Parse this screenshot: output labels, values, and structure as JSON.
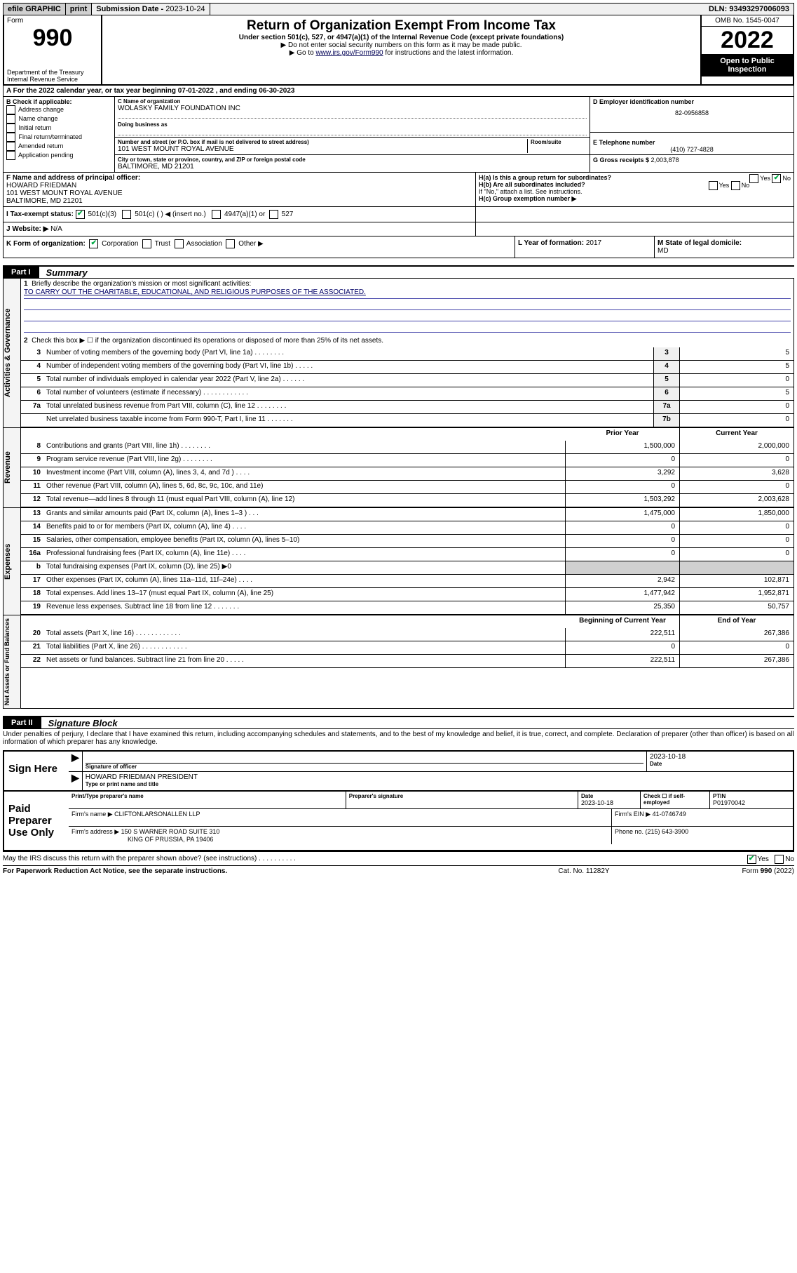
{
  "top_bar": {
    "efile": "efile GRAPHIC",
    "print": "print",
    "sub_label": "Submission Date - ",
    "sub_date": "2023-10-24",
    "dln_label": "DLN: ",
    "dln": "93493297006093"
  },
  "header": {
    "form_word": "Form",
    "form_num": "990",
    "dept": "Department of the Treasury\nInternal Revenue Service",
    "main_title": "Return of Organization Exempt From Income Tax",
    "sub1": "Under section 501(c), 527, or 4947(a)(1) of the Internal Revenue Code (except private foundations)",
    "sub2": "▶ Do not enter social security numbers on this form as it may be made public.",
    "sub3_pre": "▶ Go to ",
    "sub3_link": "www.irs.gov/Form990",
    "sub3_post": " for instructions and the latest information.",
    "omb": "OMB No. 1545-0047",
    "year": "2022",
    "open_pub": "Open to Public Inspection"
  },
  "row_a": {
    "text": "A For the 2022 calendar year, or tax year beginning 07-01-2022    , and ending 06-30-2023"
  },
  "col_b": {
    "hdr": "B Check if applicable:",
    "items": [
      "Address change",
      "Name change",
      "Initial return",
      "Final return/terminated",
      "Amended return",
      "Application pending"
    ]
  },
  "col_c": {
    "lbl": "C Name of organization",
    "name": "WOLASKY FAMILY FOUNDATION INC",
    "dba_lbl": "Doing business as",
    "dba": "",
    "addr_lbl": "Number and street (or P.O. box if mail is not delivered to street address)",
    "room_lbl": "Room/suite",
    "addr": "101 WEST MOUNT ROYAL AVENUE",
    "city_lbl": "City or town, state or province, country, and ZIP or foreign postal code",
    "city": "BALTIMORE, MD  21201"
  },
  "col_d": {
    "lbl": "D Employer identification number",
    "val": "82-0956858"
  },
  "col_e": {
    "lbl": "E Telephone number",
    "val": "(410) 727-4828"
  },
  "col_g": {
    "lbl": "G Gross receipts $ ",
    "val": "2,003,878"
  },
  "col_f": {
    "lbl": "F Name and address of principal officer:",
    "name": "HOWARD FRIEDMAN",
    "addr1": "101 WEST MOUNT ROYAL AVENUE",
    "addr2": "BALTIMORE, MD  21201"
  },
  "col_h": {
    "a": "H(a)  Is this a group return for subordinates?",
    "b": "H(b)  Are all subordinates included?",
    "note": "If \"No,\" attach a list. See instructions.",
    "c": "H(c)  Group exemption number ▶",
    "yes": "Yes",
    "no": "No"
  },
  "row_i": {
    "lbl": "I    Tax-exempt status:",
    "o1": "501(c)(3)",
    "o2": "501(c) (   ) ◀ (insert no.)",
    "o3": "4947(a)(1) or",
    "o4": "527"
  },
  "row_j": {
    "lbl": "J   Website: ▶ ",
    "val": "N/A"
  },
  "row_k": {
    "k1_lbl": "K Form of organization:",
    "k1_opts": [
      "Corporation",
      "Trust",
      "Association",
      "Other ▶"
    ],
    "k2_lbl": "L Year of formation: ",
    "k2_val": "2017",
    "k3_lbl": "M State of legal domicile:",
    "k3_val": "MD"
  },
  "part1": {
    "tab": "Part I",
    "title": "Summary",
    "q1_lbl": "Briefly describe the organization's mission or most significant activities:",
    "q1_val": "TO CARRY OUT THE CHARITABLE, EDUCATIONAL, AND RELIGIOUS PURPOSES OF THE ASSOCIATED.",
    "q2": "Check this box ▶ ☐  if the organization discontinued its operations or disposed of more than 25% of its net assets.",
    "sides": [
      "Activities & Governance",
      "Revenue",
      "Expenses",
      "Net Assets or Fund Balances"
    ],
    "hdr_prior": "Prior Year",
    "hdr_curr": "Current Year",
    "hdr_beg": "Beginning of Current Year",
    "hdr_end": "End of Year",
    "lines_top": [
      {
        "n": "3",
        "lbl": "Number of voting members of the governing body (Part VI, line 1a)   .    .    .    .    .    .    .    .",
        "box": "3",
        "val": "5"
      },
      {
        "n": "4",
        "lbl": "Number of independent voting members of the governing body (Part VI, line 1b)    .    .    .    .    .",
        "box": "4",
        "val": "5"
      },
      {
        "n": "5",
        "lbl": "Total number of individuals employed in calendar year 2022 (Part V, line 2a)   .    .    .    .    .    .",
        "box": "5",
        "val": "0"
      },
      {
        "n": "6",
        "lbl": "Total number of volunteers (estimate if necessary)   .    .    .    .    .    .    .    .    .    .    .    .",
        "box": "6",
        "val": "5"
      },
      {
        "n": "7a",
        "lbl": "Total unrelated business revenue from Part VIII, column (C), line 12   .    .    .    .    .    .    .    .",
        "box": "7a",
        "val": "0"
      },
      {
        "n": "",
        "lbl": "Net unrelated business taxable income from Form 990-T, Part I, line 11   .    .    .    .    .    .    .",
        "box": "7b",
        "val": "0"
      }
    ],
    "lines_rev": [
      {
        "n": "8",
        "lbl": "Contributions and grants (Part VIII, line 1h)    .    .    .    .    .    .    .    .",
        "p": "1,500,000",
        "c": "2,000,000"
      },
      {
        "n": "9",
        "lbl": "Program service revenue (Part VIII, line 2g)    .    .    .    .    .    .    .    .",
        "p": "0",
        "c": "0"
      },
      {
        "n": "10",
        "lbl": "Investment income (Part VIII, column (A), lines 3, 4, and 7d )    .    .    .    .",
        "p": "3,292",
        "c": "3,628"
      },
      {
        "n": "11",
        "lbl": "Other revenue (Part VIII, column (A), lines 5, 6d, 8c, 9c, 10c, and 11e)",
        "p": "0",
        "c": "0"
      },
      {
        "n": "12",
        "lbl": "Total revenue—add lines 8 through 11 (must equal Part VIII, column (A), line 12)",
        "p": "1,503,292",
        "c": "2,003,628"
      }
    ],
    "lines_exp": [
      {
        "n": "13",
        "lbl": "Grants and similar amounts paid (Part IX, column (A), lines 1–3 )    .    .    .",
        "p": "1,475,000",
        "c": "1,850,000"
      },
      {
        "n": "14",
        "lbl": "Benefits paid to or for members (Part IX, column (A), line 4)    .    .    .    .",
        "p": "0",
        "c": "0"
      },
      {
        "n": "15",
        "lbl": "Salaries, other compensation, employee benefits (Part IX, column (A), lines 5–10)",
        "p": "0",
        "c": "0"
      },
      {
        "n": "16a",
        "lbl": "Professional fundraising fees (Part IX, column (A), line 11e)    .    .    .    .",
        "p": "0",
        "c": "0"
      },
      {
        "n": "b",
        "lbl": "Total fundraising expenses (Part IX, column (D), line 25) ▶0",
        "p": "",
        "c": "",
        "shade": true
      },
      {
        "n": "17",
        "lbl": "Other expenses (Part IX, column (A), lines 11a–11d, 11f–24e)    .    .    .    .",
        "p": "2,942",
        "c": "102,871"
      },
      {
        "n": "18",
        "lbl": "Total expenses. Add lines 13–17 (must equal Part IX, column (A), line 25)",
        "p": "1,477,942",
        "c": "1,952,871"
      },
      {
        "n": "19",
        "lbl": "Revenue less expenses. Subtract line 18 from line 12   .    .    .    .    .    .    .",
        "p": "25,350",
        "c": "50,757"
      }
    ],
    "lines_net": [
      {
        "n": "20",
        "lbl": "Total assets (Part X, line 16)    .    .    .    .    .    .    .    .    .    .    .    .",
        "p": "222,511",
        "c": "267,386"
      },
      {
        "n": "21",
        "lbl": "Total liabilities (Part X, line 26)   .    .    .    .    .    .    .    .    .    .    .    .",
        "p": "0",
        "c": "0"
      },
      {
        "n": "22",
        "lbl": "Net assets or fund balances. Subtract line 21 from line 20    .    .    .    .    .",
        "p": "222,511",
        "c": "267,386"
      }
    ]
  },
  "part2": {
    "tab": "Part II",
    "title": "Signature Block",
    "declare": "Under penalties of perjury, I declare that I have examined this return, including accompanying schedules and statements, and to the best of my knowledge and belief, it is true, correct, and complete. Declaration of preparer (other than officer) is based on all information of which preparer has any knowledge.",
    "sign_here": "Sign Here",
    "sig_off_lbl": "Signature of officer",
    "sig_date": "2023-10-18",
    "date_lbl": "Date",
    "officer": "HOWARD FRIEDMAN PRESIDENT",
    "officer_lbl": "Type or print name and title",
    "paid": "Paid Preparer Use Only",
    "pt_name_lbl": "Print/Type preparer's name",
    "pt_sig_lbl": "Preparer's signature",
    "pt_date_lbl": "Date",
    "pt_date": "2023-10-18",
    "pt_check_lbl": "Check ☐ if self-employed",
    "ptin_lbl": "PTIN",
    "ptin": "P01970042",
    "firm_name_lbl": "Firm's name    ▶",
    "firm_name": "CLIFTONLARSONALLEN LLP",
    "firm_ein_lbl": "Firm's EIN ▶",
    "firm_ein": "41-0746749",
    "firm_addr_lbl": "Firm's address ▶",
    "firm_addr1": "150 S WARNER ROAD SUITE 310",
    "firm_addr2": "KING OF PRUSSIA, PA  19406",
    "phone_lbl": "Phone no. ",
    "phone": "(215) 643-3900",
    "may_irs": "May the IRS discuss this return with the preparer shown above? (see instructions)    .    .    .    .    .    .    .    .    .    .",
    "may_yes": "Yes",
    "may_no": "No"
  },
  "footer": {
    "left": "For Paperwork Reduction Act Notice, see the separate instructions.",
    "mid": "Cat. No. 11282Y",
    "right": "Form 990 (2022)"
  }
}
